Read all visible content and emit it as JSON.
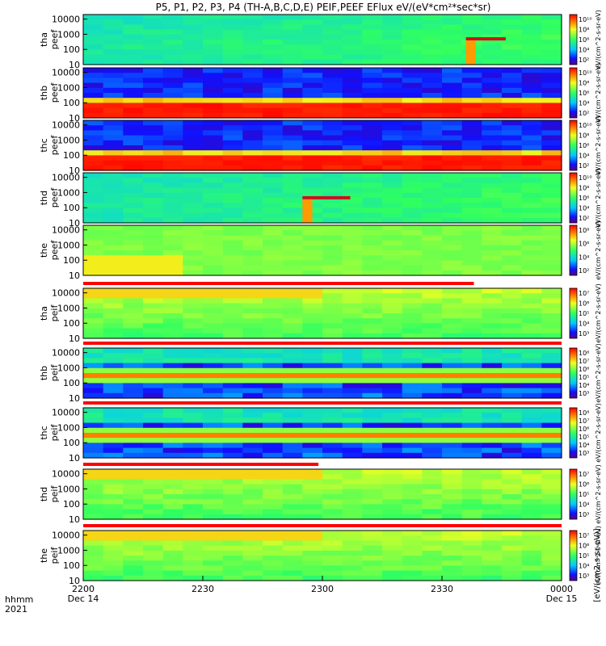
{
  "chart_data": {
    "type": "heatmap",
    "title": "P5, P1, P2, P3, P4 (TH-A,B,C,D,E) PEIF,PEEF EFlux eV/(eV*cm²*sec*sr)",
    "x_axis": {
      "label_line1": "hhmm",
      "label_line2": "2021",
      "ticks": [
        {
          "label": "2200",
          "sublabel": "Dec 14",
          "minutes": 0
        },
        {
          "label": "2230",
          "sublabel": "",
          "minutes": 30
        },
        {
          "label": "2300",
          "sublabel": "",
          "minutes": 60
        },
        {
          "label": "2330",
          "sublabel": "",
          "minutes": 90
        },
        {
          "label": "0000",
          "sublabel": "Dec 15",
          "minutes": 120
        }
      ],
      "range_minutes": [
        0,
        120
      ]
    },
    "y_axis": {
      "scale": "log",
      "range": [
        10,
        20000
      ],
      "ticks": [
        "10000",
        "1000",
        "100",
        "10"
      ]
    },
    "colorbar_label": "eV/(cm^2-s-sr-eV)",
    "bottom_colorbar_label": "[eV/(cm2-s-sr-eV)]",
    "panels": [
      {
        "ylabel": "tha\npeef",
        "cbar_ticks": [
          "10¹⁰",
          "10⁸",
          "10⁶",
          "10⁴",
          "10²"
        ],
        "base": "green-cyan",
        "stripe_minutes": [
          96,
          106
        ],
        "stripe_height_ev": 500
      },
      {
        "ylabel": "thb\npeef",
        "cbar_ticks": [
          "10¹⁰",
          "10⁸",
          "10⁶",
          "10⁴",
          "10²"
        ],
        "base": "red-core"
      },
      {
        "ylabel": "thc\npeef",
        "cbar_ticks": [
          "10¹⁰",
          "10⁸",
          "10⁶",
          "10⁴",
          "10²"
        ],
        "base": "red-core"
      },
      {
        "ylabel": "thd\npeef",
        "cbar_ticks": [
          "10¹⁰",
          "10⁸",
          "10⁶",
          "10⁴",
          "10²"
        ],
        "base": "green-cyan",
        "stripe_minutes": [
          55,
          67
        ],
        "stripe_height_ev": 450
      },
      {
        "ylabel": "the\npeef",
        "cbar_ticks": [
          "10⁸",
          "10⁶",
          "10⁴",
          "10²"
        ],
        "base": "yellow-green"
      },
      {
        "ylabel": "tha\npeif",
        "cbar_ticks": [
          "10⁷",
          "10⁶",
          "10⁵",
          "10⁴",
          "10³"
        ],
        "base": "ion-green",
        "top_bar_minutes": [
          0,
          98
        ]
      },
      {
        "ylabel": "thb\npeif",
        "cbar_ticks": [
          "10⁸",
          "10⁷",
          "10⁶",
          "10⁵",
          "10⁴",
          "10³"
        ],
        "base": "ion-band",
        "top_bar_minutes": [
          0,
          120
        ]
      },
      {
        "ylabel": "thc\npeif",
        "cbar_ticks": [
          "10⁸",
          "10⁷",
          "10⁶",
          "10⁵",
          "10⁴",
          "10³"
        ],
        "base": "ion-band",
        "top_bar_minutes": [
          0,
          120
        ]
      },
      {
        "ylabel": "thd\npeif",
        "cbar_ticks": [
          "10⁷",
          "10⁶",
          "10⁵",
          "10⁴",
          "10³"
        ],
        "base": "ion-green",
        "top_bar_minutes": [
          0,
          59
        ]
      },
      {
        "ylabel": "the\npeif",
        "cbar_ticks": [
          "10⁷",
          "10⁶",
          "10⁵",
          "10⁴",
          "10³"
        ],
        "base": "ion-green",
        "top_bar_minutes": [
          0,
          120
        ]
      }
    ]
  }
}
